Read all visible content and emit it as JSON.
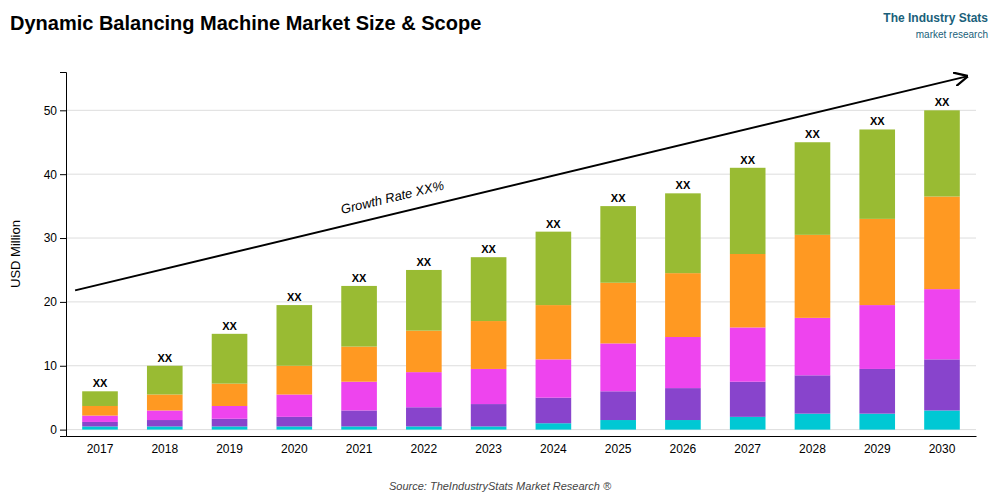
{
  "chart_data": {
    "type": "bar",
    "stacked": true,
    "title": "Dynamic Balancing Machine Market Size & Scope",
    "source": "Source: TheIndustryStats Market Research ®",
    "ylabel": "USD Million",
    "categories": [
      "2017",
      "2018",
      "2019",
      "2020",
      "2021",
      "2022",
      "2023",
      "2024",
      "2025",
      "2026",
      "2027",
      "2028",
      "2029",
      "2030"
    ],
    "series": [
      {
        "color": "#00c8d4",
        "values": [
          0.5,
          0.5,
          0.5,
          0.5,
          0.5,
          0.5,
          0.5,
          1.0,
          1.5,
          1.5,
          2.0,
          2.5,
          2.5,
          3.0
        ]
      },
      {
        "color": "#8844cc",
        "values": [
          0.7,
          1.0,
          1.2,
          1.5,
          2.5,
          3.0,
          3.5,
          4.0,
          4.5,
          5.0,
          5.5,
          6.0,
          7.0,
          8.0
        ]
      },
      {
        "color": "#ee44ee",
        "values": [
          1.0,
          1.5,
          2.0,
          3.5,
          4.5,
          5.5,
          5.5,
          6.0,
          7.5,
          8.0,
          8.5,
          9.0,
          10.0,
          11.0
        ]
      },
      {
        "color": "#ff9922",
        "values": [
          1.5,
          2.5,
          3.5,
          4.5,
          5.5,
          6.5,
          7.5,
          8.5,
          9.5,
          10.0,
          11.5,
          13.0,
          13.5,
          14.5
        ]
      },
      {
        "color": "#99bb33",
        "values": [
          2.3,
          4.5,
          7.8,
          9.5,
          9.5,
          9.5,
          10.0,
          11.5,
          12.0,
          12.5,
          13.5,
          14.5,
          14.0,
          13.5
        ]
      }
    ],
    "bar_labels": [
      "XX",
      "XX",
      "XX",
      "XX",
      "XX",
      "XX",
      "XX",
      "XX",
      "XX",
      "XX",
      "XX",
      "XX",
      "XX",
      "XX"
    ],
    "annotations": [
      "Growth Rate XX%",
      "The Industry Stats",
      "market research"
    ],
    "ylim": [
      -1,
      56
    ],
    "yticks": [
      0,
      10,
      20,
      30,
      40,
      50
    ],
    "grid": true
  }
}
